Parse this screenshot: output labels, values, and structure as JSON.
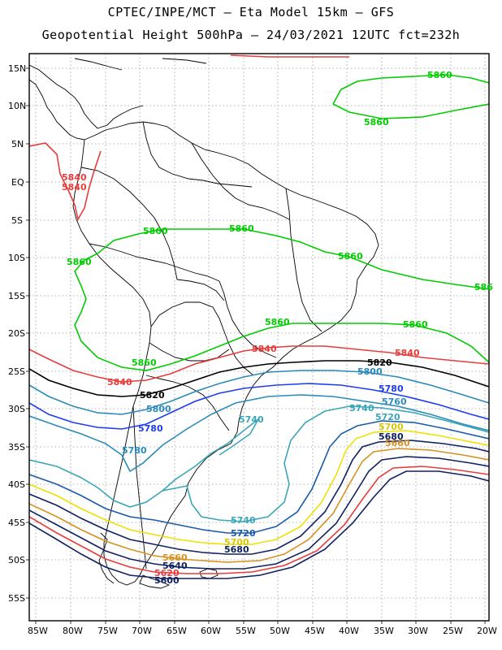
{
  "header": {
    "line1": "CPTEC/INPE/MCT –  Eta Model 15km – GFS",
    "line2": "Geopotential Height 500hPa – 24/03/2021 12UTC fct=232h"
  },
  "axes": {
    "lat_labels": [
      "15N",
      "10N",
      "5N",
      "EQ",
      "5S",
      "10S",
      "15S",
      "20S",
      "25S",
      "30S",
      "35S",
      "40S",
      "45S",
      "50S",
      "55S"
    ],
    "lon_labels": [
      "85W",
      "80W",
      "75W",
      "70W",
      "65W",
      "60W",
      "55W",
      "50W",
      "45W",
      "40W",
      "35W",
      "30W",
      "25W",
      "20W"
    ]
  },
  "contours": [
    {
      "value": "5860",
      "color": "#00cc00"
    },
    {
      "value": "5840",
      "color": "#e83c3c"
    },
    {
      "value": "5820",
      "color": "#000000"
    },
    {
      "value": "5800",
      "color": "#2a8ab8"
    },
    {
      "value": "5780",
      "color": "#1e3cf0"
    },
    {
      "value": "5760",
      "color": "#2a8ab8"
    },
    {
      "value": "5740",
      "color": "#3aa6b8"
    },
    {
      "value": "5720",
      "color": "#1a5aa8"
    },
    {
      "value": "5700",
      "color": "#f0e000"
    },
    {
      "value": "5680",
      "color": "#102060"
    },
    {
      "value": "5660",
      "color": "#d89020"
    },
    {
      "value": "5640",
      "color": "#102060"
    },
    {
      "value": "5620",
      "color": "#e83c3c"
    },
    {
      "value": "5600",
      "color": "#102060"
    }
  ],
  "contour_labels": [
    {
      "text": "5860",
      "color": "#00cc00"
    },
    {
      "text": "5860",
      "color": "#00cc00"
    },
    {
      "text": "5860",
      "color": "#00cc00"
    },
    {
      "text": "5860",
      "color": "#00cc00"
    },
    {
      "text": "5860",
      "color": "#00cc00"
    },
    {
      "text": "5860",
      "color": "#00cc00"
    },
    {
      "text": "586",
      "color": "#00cc00"
    },
    {
      "text": "5860",
      "color": "#00cc00"
    },
    {
      "text": "5860",
      "color": "#00cc00"
    },
    {
      "text": "5860",
      "color": "#00cc00"
    },
    {
      "text": "5840",
      "color": "#e83c3c"
    },
    {
      "text": "5840",
      "color": "#e83c3c"
    },
    {
      "text": "5840",
      "color": "#e83c3c"
    },
    {
      "text": "5840",
      "color": "#e83c3c"
    },
    {
      "text": "5840",
      "color": "#e83c3c"
    },
    {
      "text": "5820",
      "color": "#000000"
    },
    {
      "text": "5820",
      "color": "#000000"
    },
    {
      "text": "5800",
      "color": "#2a8ab8"
    },
    {
      "text": "5800",
      "color": "#2a8ab8"
    },
    {
      "text": "5780",
      "color": "#1e3cf0"
    },
    {
      "text": "5780",
      "color": "#1e3cf0"
    },
    {
      "text": "5780",
      "color": "#2a8ab8"
    },
    {
      "text": "5760",
      "color": "#2a8ab8"
    },
    {
      "text": "5740",
      "color": "#3aa6b8"
    },
    {
      "text": "5740",
      "color": "#3aa6b8"
    },
    {
      "text": "5740",
      "color": "#3aa6b8"
    },
    {
      "text": "5720",
      "color": "#3aa6b8"
    },
    {
      "text": "5720",
      "color": "#1a5aa8"
    },
    {
      "text": "5700",
      "color": "#d8c800"
    },
    {
      "text": "5700",
      "color": "#d8c800"
    },
    {
      "text": "5680",
      "color": "#102060"
    },
    {
      "text": "5680",
      "color": "#102060"
    },
    {
      "text": "5660",
      "color": "#d89020"
    },
    {
      "text": "5660",
      "color": "#d89020"
    },
    {
      "text": "5640",
      "color": "#102060"
    },
    {
      "text": "5620",
      "color": "#e83c3c"
    },
    {
      "text": "5600",
      "color": "#102060"
    }
  ]
}
